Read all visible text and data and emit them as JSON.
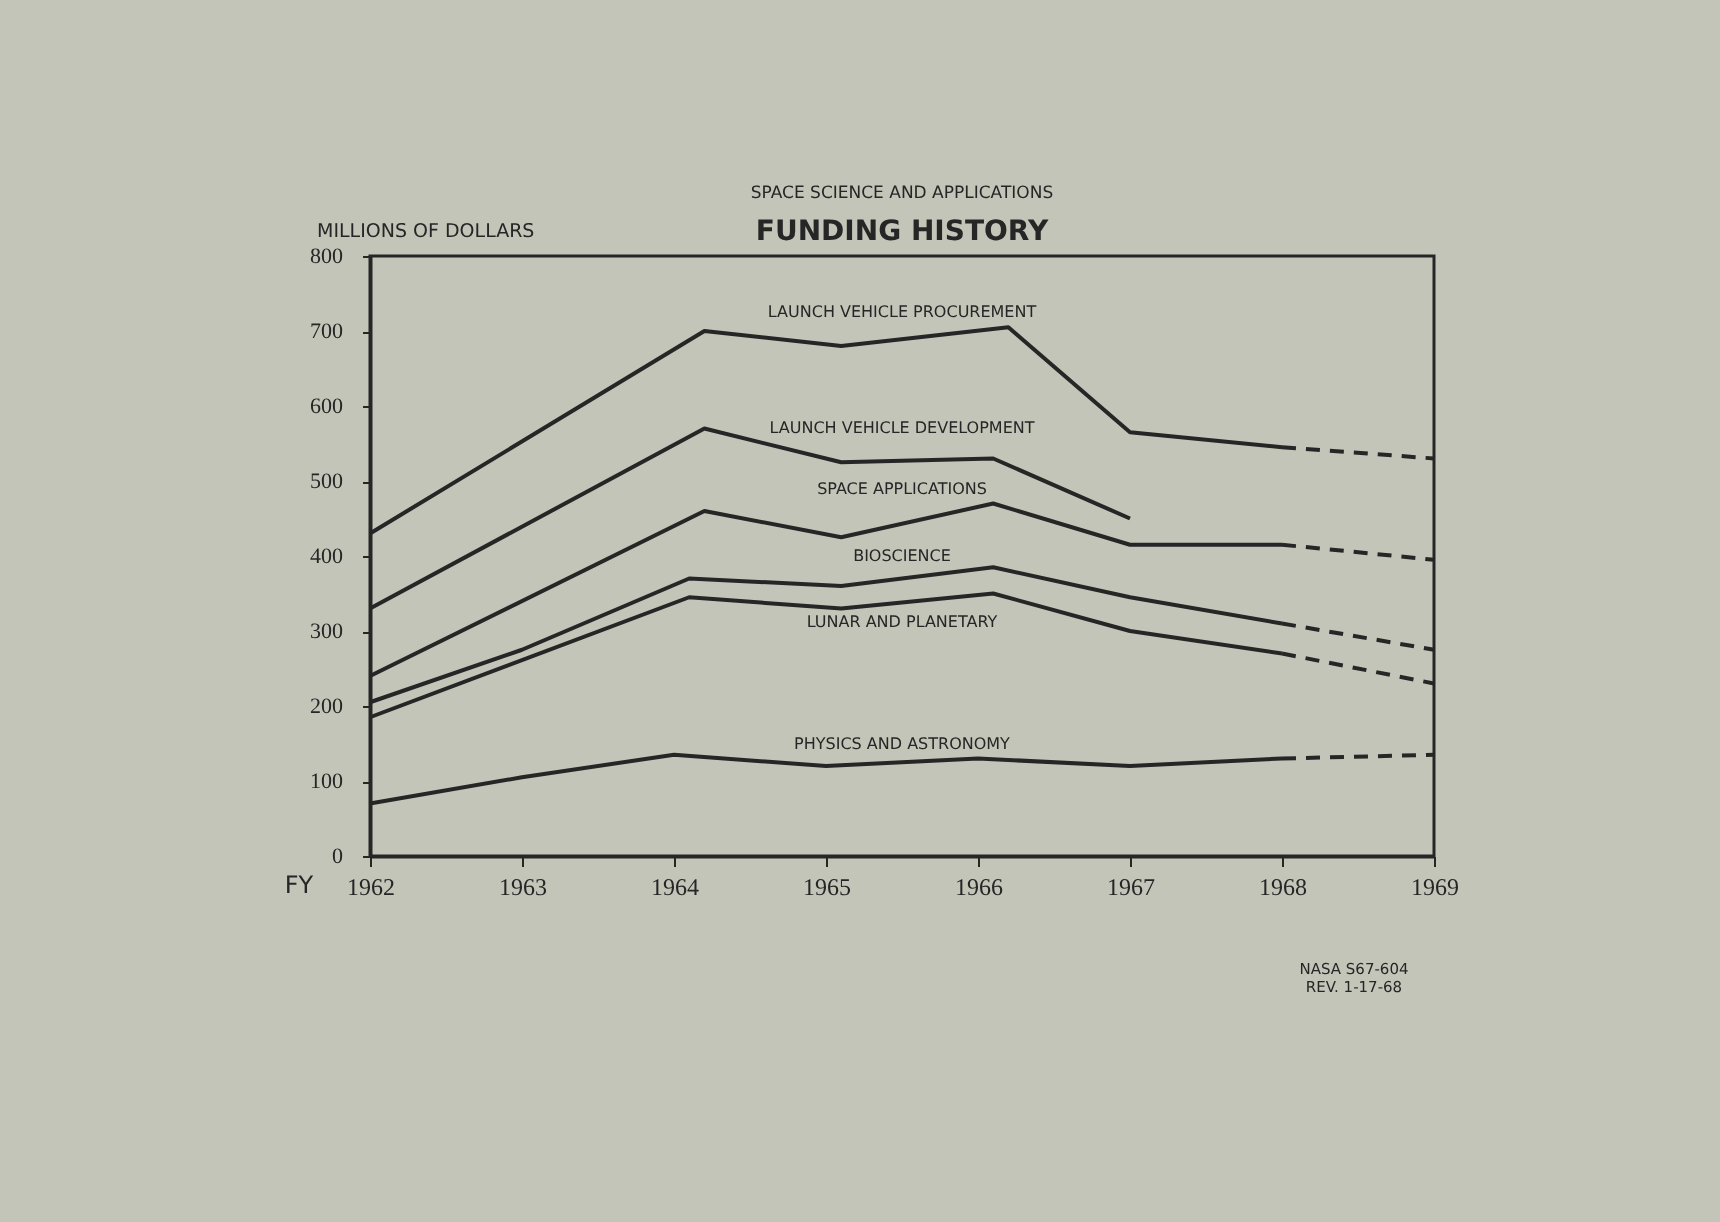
{
  "chart_data": {
    "type": "line",
    "title": "FUNDING HISTORY",
    "subtitle": "SPACE SCIENCE AND APPLICATIONS",
    "xlabel": "FY",
    "ylabel": "MILLIONS OF DOLLARS",
    "xlim": [
      1962,
      1969
    ],
    "xticks": [
      1962,
      1963,
      1964,
      1965,
      1966,
      1967,
      1968,
      1969
    ],
    "ylim": [
      0,
      800
    ],
    "yticks": [
      0,
      100,
      200,
      300,
      400,
      500,
      600,
      700,
      800
    ],
    "grid": false,
    "legend": false,
    "marker": "none",
    "line_style": "solid",
    "series": [
      {
        "name": "LAUNCH VEHICLE PROCUREMENT",
        "color": "#262626",
        "x": [
          1962,
          1964.2,
          1965.1,
          1966.2,
          1967,
          1968
        ],
        "values": [
          430,
          700,
          680,
          705,
          565,
          545
        ]
      },
      {
        "color": "#262626",
        "line_style": "dashed",
        "x": [
          1968,
          1969
        ],
        "values": [
          545,
          530
        ]
      },
      {
        "name": "LAUNCH VEHICLE DEVELOPMENT",
        "color": "#262626",
        "x": [
          1962,
          1964.2,
          1965.1,
          1966.1,
          1967
        ],
        "values": [
          330,
          570,
          525,
          530,
          450
        ]
      },
      {
        "name": "SPACE APPLICATIONS",
        "color": "#262626",
        "x": [
          1962,
          1964.2,
          1965.1,
          1966.1,
          1967,
          1968
        ],
        "values": [
          240,
          460,
          425,
          470,
          415,
          415
        ]
      },
      {
        "color": "#262626",
        "line_style": "dashed",
        "x": [
          1968,
          1969
        ],
        "values": [
          415,
          395
        ]
      },
      {
        "name": "BIOSCIENCE",
        "color": "#262626",
        "x": [
          1962,
          1963,
          1964.1,
          1965.1,
          1966.1,
          1967,
          1968
        ],
        "values": [
          205,
          275,
          370,
          360,
          385,
          345,
          310
        ]
      },
      {
        "color": "#262626",
        "line_style": "dashed",
        "x": [
          1968,
          1969
        ],
        "values": [
          310,
          275
        ]
      },
      {
        "name": "LUNAR AND PLANETARY",
        "color": "#262626",
        "x": [
          1962,
          1964.1,
          1965.1,
          1966.1,
          1967,
          1968
        ],
        "values": [
          185,
          345,
          330,
          350,
          300,
          270
        ]
      },
      {
        "color": "#262626",
        "line_style": "dashed",
        "x": [
          1968,
          1969
        ],
        "values": [
          270,
          230
        ]
      },
      {
        "name": "PHYSICS AND ASTRONOMY",
        "color": "#262626",
        "x": [
          1962,
          1963,
          1964,
          1965,
          1966,
          1967,
          1968
        ],
        "values": [
          70,
          105,
          135,
          120,
          130,
          120,
          130
        ]
      },
      {
        "color": "#262626",
        "line_style": "dashed",
        "x": [
          1968,
          1969
        ],
        "values": [
          130,
          135
        ]
      }
    ],
    "annotations": [
      "NASA S67-604",
      "REV. 1-17-68"
    ]
  }
}
